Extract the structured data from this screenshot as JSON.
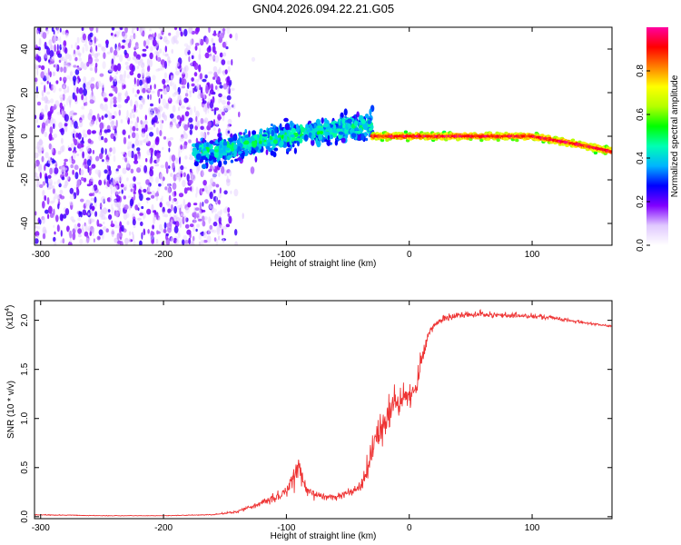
{
  "chart_data": [
    {
      "type": "heatmap",
      "title": "GN04.2026.094.22.21.G05",
      "xlabel": "Height of straight line (km)",
      "ylabel": "Frequency (Hz)",
      "xlim": [
        -305,
        165
      ],
      "ylim": [
        -50,
        50
      ],
      "xticks": [
        -300,
        -200,
        -100,
        0,
        100
      ],
      "yticks": [
        40,
        20,
        0,
        -20,
        -40
      ],
      "colorbar": {
        "label": "Normalized spectral amplitude",
        "range": [
          0,
          1
        ],
        "ticks": [
          "0.0",
          "0.2",
          "0.4",
          "0.6",
          "0.8"
        ],
        "colors": [
          "#ffffff",
          "#e0c8ff",
          "#8000ff",
          "#0000ff",
          "#00b4ff",
          "#00ffb4",
          "#00ff00",
          "#b4ff00",
          "#ffff00",
          "#ff8000",
          "#ff0000",
          "#ff00a0"
        ]
      },
      "regions": [
        {
          "name": "noise",
          "x_range": [
            -305,
            -145
          ],
          "freq_range": [
            -50,
            50
          ],
          "amplitude": 0.08
        },
        {
          "name": "transition",
          "x_range": [
            -175,
            -30
          ],
          "freq_center": [
            [
              -175,
              -8
            ],
            [
              -100,
              0
            ],
            [
              -30,
              5
            ]
          ],
          "spread_hz": 10,
          "amplitude": 0.25
        },
        {
          "name": "tracking",
          "x_range": [
            -30,
            165
          ],
          "freq_center": [
            [
              -30,
              0
            ],
            [
              100,
              0
            ],
            [
              120,
              -2
            ],
            [
              140,
              -4
            ],
            [
              165,
              -7
            ]
          ],
          "spread_hz": 2,
          "amplitude": 0.85
        }
      ]
    },
    {
      "type": "line",
      "xlabel": "Height of straight line (km)",
      "ylabel": "SNR (10 * v/v)",
      "yscale_label": "(x10",
      "yscale_exp": "4",
      "xlim": [
        -305,
        165
      ],
      "ylim": [
        -0.02,
        2.2
      ],
      "xticks": [
        -300,
        -200,
        -100,
        0,
        100
      ],
      "yticks": [
        "0.0",
        "0.5",
        "1.0",
        "1.5",
        "2.0"
      ],
      "series": [
        {
          "name": "SNR",
          "color": "#ee3333",
          "x": [
            -305,
            -250,
            -200,
            -160,
            -140,
            -130,
            -120,
            -110,
            -100,
            -95,
            -90,
            -85,
            -80,
            -75,
            -70,
            -60,
            -50,
            -40,
            -35,
            -30,
            -25,
            -20,
            -15,
            -10,
            -5,
            0,
            5,
            10,
            15,
            20,
            25,
            30,
            40,
            50,
            60,
            80,
            100,
            120,
            140,
            165
          ],
          "y": [
            0.02,
            0.01,
            0.01,
            0.02,
            0.05,
            0.1,
            0.14,
            0.2,
            0.25,
            0.38,
            0.5,
            0.3,
            0.24,
            0.21,
            0.2,
            0.2,
            0.24,
            0.3,
            0.45,
            0.7,
            0.9,
            1.0,
            1.1,
            1.15,
            1.2,
            1.25,
            1.3,
            1.6,
            1.85,
            1.95,
            2.0,
            2.02,
            2.05,
            2.06,
            2.06,
            2.05,
            2.04,
            2.02,
            1.98,
            1.94
          ],
          "noise": [
            0.01,
            0.005,
            0.005,
            0.01,
            0.02,
            0.04,
            0.06,
            0.1,
            0.12,
            0.2,
            0.25,
            0.15,
            0.1,
            0.08,
            0.07,
            0.07,
            0.1,
            0.15,
            0.3,
            0.4,
            0.45,
            0.4,
            0.35,
            0.3,
            0.25,
            0.2,
            0.2,
            0.2,
            0.12,
            0.08,
            0.07,
            0.07,
            0.06,
            0.06,
            0.06,
            0.06,
            0.05,
            0.04,
            0.03,
            0.02
          ]
        }
      ]
    }
  ]
}
